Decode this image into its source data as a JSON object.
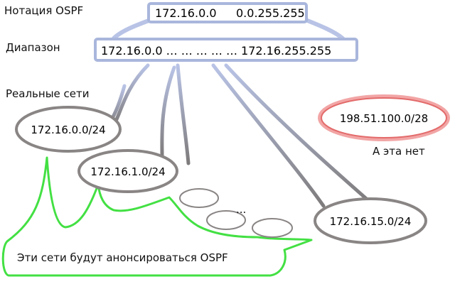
{
  "labels": {
    "notation": "Нотация OSPF",
    "range": "Диапазон",
    "real_networks": "Реальные сети",
    "excluded_note": "А эта нет",
    "callout": "Эти сети будут анонсироваться OSPF",
    "ellipsis": "..."
  },
  "notation_box": {
    "address": "172.16.0.0",
    "wildcard": "0.0.255.255"
  },
  "range_box": {
    "text": "172.16.0.0 … … … … … 172.16.255.255"
  },
  "networks": [
    {
      "name": "172.16.0.0/24"
    },
    {
      "name": "172.16.1.0/24"
    },
    {
      "name": "172.16.15.0/24"
    }
  ],
  "excluded_network": {
    "name": "198.51.100.0/28"
  },
  "colors": {
    "box_border": "#a9b6dc",
    "network_border": "#8a8585",
    "excluded_border": "#e36a6a",
    "callout_border": "#43e043"
  }
}
